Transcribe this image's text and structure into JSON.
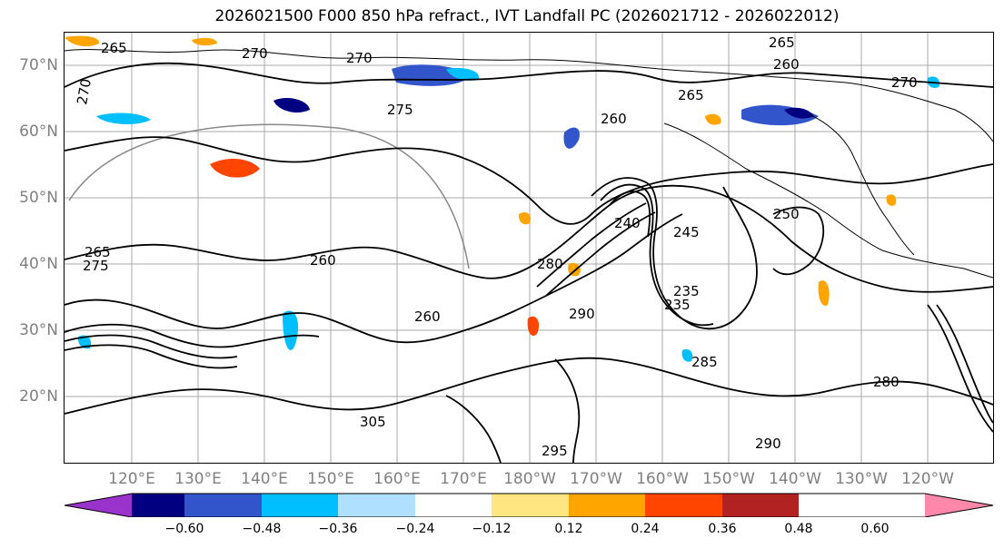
{
  "title": "2026021500 F000 850 hPa refract., IVT Landfall PC (2026021712 - 2026022012)",
  "map": {
    "lat_labels": [
      "70°N",
      "60°N",
      "50°N",
      "40°N",
      "30°N",
      "20°N"
    ],
    "lon_labels": [
      "120°E",
      "130°E",
      "140°E",
      "150°E",
      "160°E",
      "170°E",
      "180°W",
      "170°W",
      "160°W",
      "150°W",
      "140°W",
      "130°W",
      "120°W"
    ],
    "contour_labels": [
      "265",
      "270",
      "270",
      "275",
      "265",
      "260",
      "265",
      "270",
      "260",
      "260",
      "250",
      "240",
      "245",
      "235",
      "235",
      "260",
      "280",
      "290",
      "285",
      "280",
      "305",
      "295",
      "290",
      "275",
      "265",
      "270"
    ],
    "colors": {
      "contour": "#000000",
      "grid": "#a0a0a0",
      "coast": "#000000"
    }
  },
  "colorbar": {
    "ticks": [
      "−0.60",
      "−0.48",
      "−0.36",
      "−0.24",
      "−0.12",
      "0.12",
      "0.24",
      "0.36",
      "0.48",
      "0.60"
    ],
    "colors": [
      "#9933cc",
      "#000080",
      "#3355cc",
      "#00bfff",
      "#b0e0ff",
      "#ffffff",
      "#ffe680",
      "#ffa500",
      "#ff4500",
      "#b22222",
      "#ff88aa"
    ]
  }
}
